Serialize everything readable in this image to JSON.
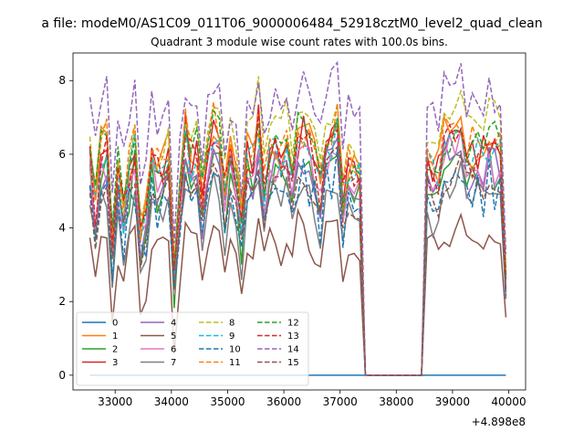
{
  "suptitle": "a file: modeM0/AS1C09_011T06_9000006484_52918cztM0_level2_quad_clean",
  "chart_data": {
    "type": "line",
    "title": "Quadrant 3 module wise count rates with 100.0s bins.",
    "xlabel": "",
    "ylabel": "",
    "x_offset_label": "+4.898e8",
    "xlim": [
      32250,
      40300
    ],
    "ylim": [
      -0.4,
      8.75
    ],
    "xticks": [
      33000,
      34000,
      35000,
      36000,
      37000,
      38000,
      39000,
      40000
    ],
    "yticks": [
      0,
      2,
      4,
      6,
      8
    ],
    "grid": false,
    "legend": "lower-left",
    "legend_columns": 4,
    "x_start": 32550,
    "x_step": 100,
    "series_count": 16,
    "gap_start_index": 49,
    "gap_end_index": 59,
    "points_per_series": 75,
    "series": [
      {
        "name": "0",
        "color": "#1f77b4",
        "style": "solid",
        "level": 0,
        "amp": 0,
        "zero": true
      },
      {
        "name": "1",
        "color": "#ff7f0e",
        "style": "solid",
        "level": 6.0,
        "amp": 0.9
      },
      {
        "name": "2",
        "color": "#2ca02c",
        "style": "solid",
        "level": 5.2,
        "amp": 0.9
      },
      {
        "name": "3",
        "color": "#d62728",
        "style": "solid",
        "level": 5.9,
        "amp": 0.9
      },
      {
        "name": "4",
        "color": "#9467bd",
        "style": "solid",
        "level": 5.3,
        "amp": 0.9
      },
      {
        "name": "5",
        "color": "#8c564b",
        "style": "solid",
        "level": 3.5,
        "amp": 0.7
      },
      {
        "name": "6",
        "color": "#e377c2",
        "style": "solid",
        "level": 5.4,
        "amp": 0.9
      },
      {
        "name": "7",
        "color": "#7f7f7f",
        "style": "solid",
        "level": 4.6,
        "amp": 0.8
      },
      {
        "name": "8",
        "color": "#bcbd22",
        "style": "dashed",
        "level": 6.5,
        "amp": 1.0
      },
      {
        "name": "9",
        "color": "#17becf",
        "style": "dashed",
        "level": 5.8,
        "amp": 0.9
      },
      {
        "name": "10",
        "color": "#1f77b4",
        "style": "dashed",
        "level": 4.8,
        "amp": 0.8
      },
      {
        "name": "11",
        "color": "#ff7f0e",
        "style": "dashed",
        "level": 6.1,
        "amp": 0.9
      },
      {
        "name": "12",
        "color": "#2ca02c",
        "style": "dashed",
        "level": 6.0,
        "amp": 0.9
      },
      {
        "name": "13",
        "color": "#d62728",
        "style": "dashed",
        "level": 5.8,
        "amp": 0.9
      },
      {
        "name": "14",
        "color": "#9467bd",
        "style": "dashed",
        "level": 7.3,
        "amp": 1.0
      },
      {
        "name": "15",
        "color": "#8c564b",
        "style": "dashed",
        "level": 5.0,
        "amp": 0.8
      }
    ]
  }
}
